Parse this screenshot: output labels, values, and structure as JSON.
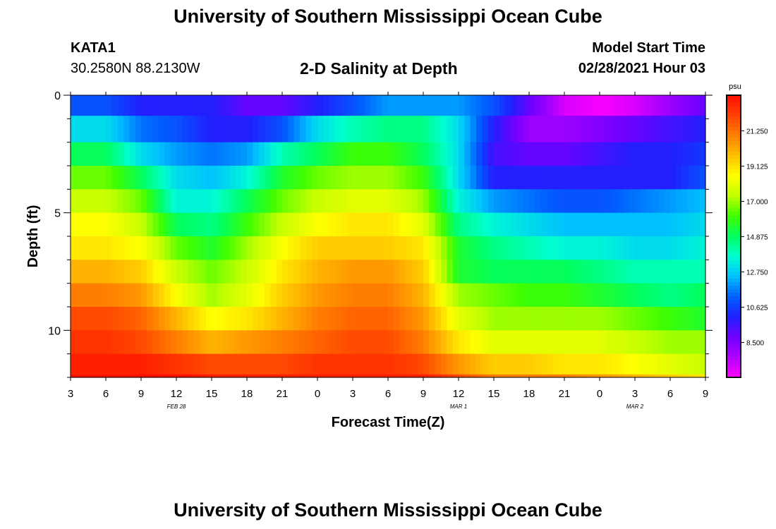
{
  "header": {
    "title": "University of Southern Mississippi Ocean Cube",
    "station": "KATA1",
    "coords": "30.2580N 88.2130W",
    "subtitle": "2-D Salinity at Depth",
    "model_label": "Model Start Time",
    "model_time": "02/28/2021 Hour 03",
    "footer_title": "University of Southern Mississippi Ocean Cube"
  },
  "chart_data": {
    "type": "heatmap",
    "title": "2-D Salinity at Depth",
    "xlabel": "Forecast Time(Z)",
    "ylabel": "Depth (ft)",
    "x_ticks": [
      "3",
      "6",
      "9",
      "12",
      "15",
      "18",
      "21",
      "0",
      "3",
      "6",
      "9",
      "12",
      "15",
      "18",
      "21",
      "0",
      "3",
      "6",
      "9"
    ],
    "date_labels": [
      {
        "text": "FEB 28",
        "x_tick_index": 3
      },
      {
        "text": "MAR 1",
        "x_tick_index": 11
      },
      {
        "text": "MAR 2",
        "x_tick_index": 16
      }
    ],
    "x_hours_since_start": [
      0,
      3,
      6,
      9,
      12,
      15,
      18,
      21,
      24,
      27,
      30,
      33,
      36,
      39,
      42,
      45,
      48,
      51,
      54
    ],
    "y_ticks": [
      "0",
      "5",
      "10"
    ],
    "depth_levels_ft": [
      0.25,
      1.5,
      2.5,
      3.5,
      4.5,
      5.5,
      6.5,
      7.5,
      8.5,
      9.5,
      10.5,
      11.5,
      12.25
    ],
    "ylim": [
      0,
      12
    ],
    "colorbar": {
      "unit": "psu",
      "tick_labels": [
        "21.250",
        "19.125",
        "17.000",
        "14.875",
        "12.750",
        "10.625",
        "8.500"
      ],
      "range": [
        6.4,
        23.4
      ],
      "colors": [
        "#ff00ff",
        "#b000ff",
        "#7000ff",
        "#2020ff",
        "#0060ff",
        "#00c0ff",
        "#00ffd0",
        "#00ff60",
        "#40ff00",
        "#c0ff00",
        "#ffff00",
        "#ffc000",
        "#ff8000",
        "#ff4000",
        "#ff1000"
      ]
    },
    "values": [
      [
        11,
        11,
        10,
        10,
        10,
        9,
        9,
        10,
        11,
        12,
        12,
        12,
        11,
        9,
        7,
        6.5,
        7,
        8,
        9
      ],
      [
        13,
        13,
        11.5,
        11,
        10,
        10,
        11,
        13,
        14,
        14.5,
        14.5,
        13,
        10,
        8,
        8,
        8.5,
        9,
        9.5,
        10
      ],
      [
        15,
        15,
        13,
        12,
        11.5,
        12,
        14,
        15,
        16,
        16,
        15,
        13,
        9.5,
        9,
        9,
        9.5,
        10,
        10,
        10.5
      ],
      [
        16.5,
        16.5,
        15,
        13,
        12.5,
        13.5,
        15.5,
        16.5,
        17,
        17,
        16,
        13,
        10,
        10,
        10,
        10,
        10,
        10,
        11
      ],
      [
        17.5,
        17.5,
        16.5,
        13.5,
        13.5,
        15,
        16.5,
        17.5,
        18,
        18,
        17,
        13.5,
        12,
        11.5,
        11,
        11,
        11.5,
        12,
        12.5
      ],
      [
        18.5,
        18.5,
        17.5,
        15,
        14.5,
        16,
        17.5,
        18.5,
        19,
        19,
        18,
        14.5,
        13.5,
        13,
        12.5,
        12.5,
        12.5,
        12.5,
        13
      ],
      [
        19,
        19,
        18.5,
        16.5,
        15.5,
        17,
        18.5,
        19.5,
        19.5,
        19.5,
        19,
        15.5,
        14.5,
        14,
        13.5,
        13.5,
        13,
        13,
        13.5
      ],
      [
        20,
        20,
        19.5,
        17.5,
        16.5,
        17.5,
        19,
        20,
        20.5,
        20.5,
        19.5,
        15.5,
        15,
        15,
        15,
        14.5,
        14,
        14,
        14
      ],
      [
        21,
        21,
        20.5,
        18.5,
        17,
        18,
        19.5,
        20.5,
        21,
        21,
        20,
        17,
        16.5,
        16,
        16,
        15.5,
        15,
        14.5,
        15
      ],
      [
        22,
        22,
        21.5,
        20,
        18.5,
        19,
        20,
        21,
        21.5,
        21.5,
        20.5,
        18,
        17,
        17,
        17,
        17,
        16.5,
        16,
        15.5
      ],
      [
        22.5,
        22.5,
        22,
        21,
        20,
        20.5,
        21,
        21.5,
        22,
        22,
        21,
        19,
        18,
        18,
        18,
        18,
        17.5,
        17,
        17
      ],
      [
        23,
        23,
        23,
        22.5,
        22,
        22,
        22,
        22.5,
        22.5,
        22.5,
        22,
        20.5,
        19.5,
        19.5,
        19,
        19,
        18.5,
        18,
        17.5
      ],
      [
        23.5,
        23.5,
        23.5,
        23.5,
        23,
        23,
        23,
        23,
        23,
        23,
        23,
        22,
        21,
        21,
        21,
        20.5,
        20,
        19.5,
        19
      ]
    ]
  }
}
